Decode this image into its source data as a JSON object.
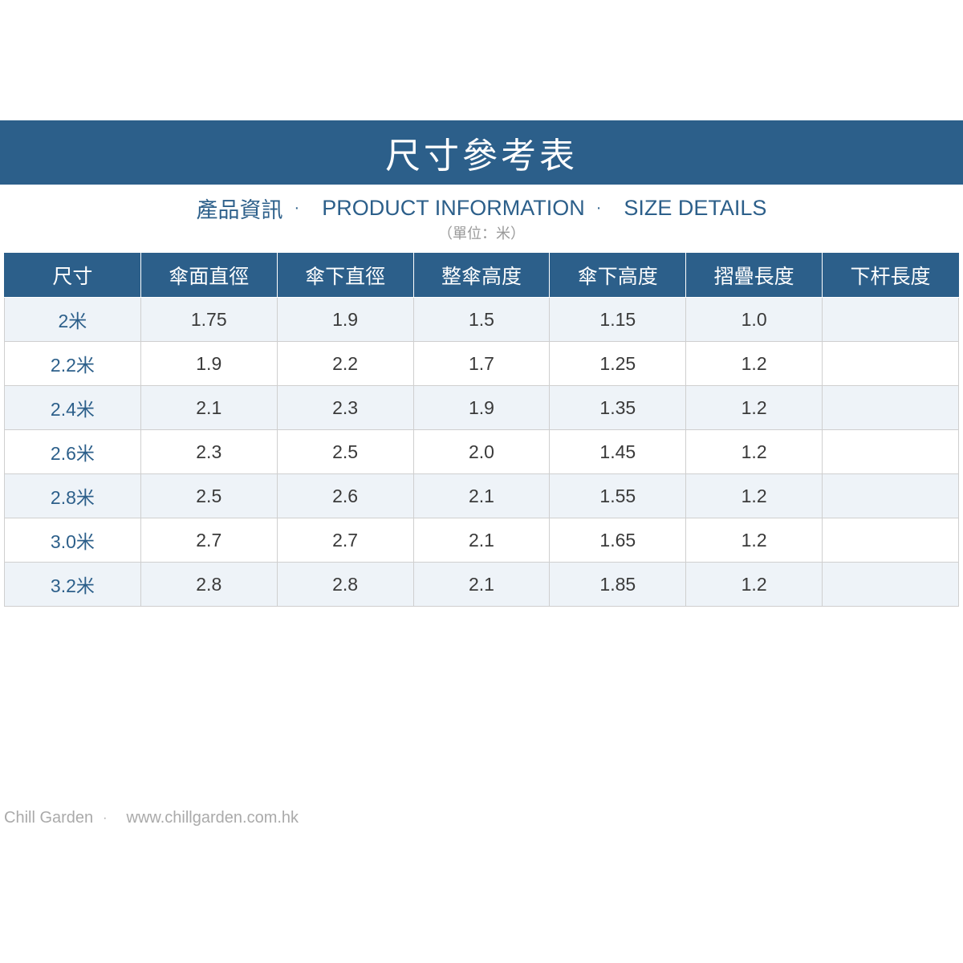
{
  "banner": {
    "title": "尺寸參考表"
  },
  "subtitle": {
    "part1": "產品資訊",
    "part2": "PRODUCT INFORMATION",
    "part3": "SIZE DETAILS",
    "separator": "·"
  },
  "unit_note": "（單位：米）",
  "table": {
    "headers": [
      "尺寸",
      "傘面直徑",
      "傘下直徑",
      "整傘高度",
      "傘下高度",
      "摺疊長度",
      "下杆長度"
    ],
    "rows": [
      [
        "2米",
        "1.75",
        "1.9",
        "1.5",
        "1.15",
        "1.0",
        ""
      ],
      [
        "2.2米",
        "1.9",
        "2.2",
        "1.7",
        "1.25",
        "1.2",
        ""
      ],
      [
        "2.4米",
        "2.1",
        "2.3",
        "1.9",
        "1.35",
        "1.2",
        ""
      ],
      [
        "2.6米",
        "2.3",
        "2.5",
        "2.0",
        "1.45",
        "1.2",
        ""
      ],
      [
        "2.8米",
        "2.5",
        "2.6",
        "2.1",
        "1.55",
        "1.2",
        ""
      ],
      [
        "3.0米",
        "2.7",
        "2.7",
        "2.1",
        "1.65",
        "1.2",
        ""
      ],
      [
        "3.2米",
        "2.8",
        "2.8",
        "2.1",
        "1.85",
        "1.2",
        ""
      ]
    ]
  },
  "footer": {
    "brand": "Chill Garden",
    "separator": "·",
    "url": "www.chillgarden.com.hk"
  },
  "colors": {
    "primary": "#2c5f8a",
    "row_alt": "#eef3f8",
    "border": "#cfcfcf",
    "footer_text": "#aaaaaa"
  }
}
